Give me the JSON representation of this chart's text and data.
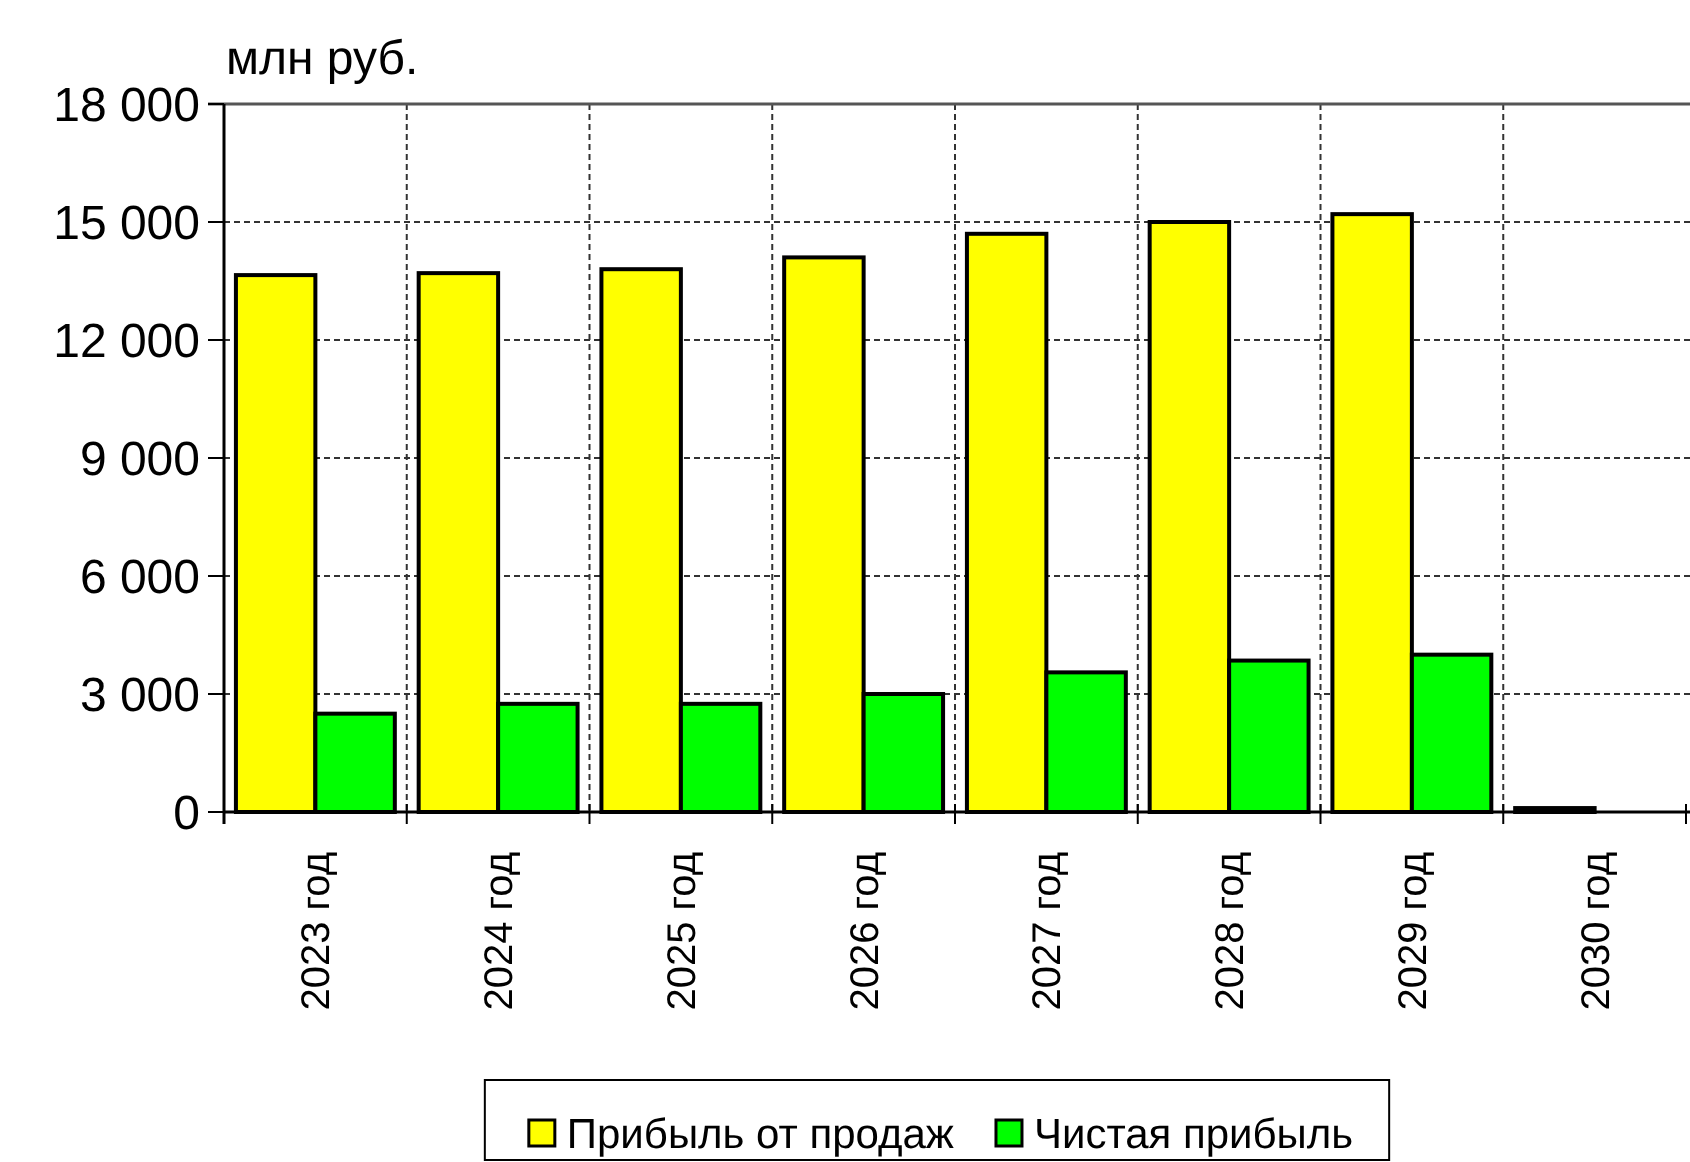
{
  "chart_data": {
    "type": "bar",
    "title": "млн руб.",
    "categories": [
      "2023 год",
      "2024 год",
      "2025 год",
      "2026 год",
      "2027 год",
      "2028 год",
      "2029 год",
      "2030 год"
    ],
    "series": [
      {
        "name": "Прибыль от продаж",
        "color": "#ffff00",
        "values": [
          13650,
          13700,
          13800,
          14100,
          14700,
          15000,
          15200,
          100
        ]
      },
      {
        "name": "Чистая прибыль",
        "color": "#00ff00",
        "values": [
          2500,
          2750,
          2750,
          3000,
          3550,
          3850,
          4000,
          0
        ]
      }
    ],
    "ylim": [
      0,
      18000
    ],
    "yticks": [
      0,
      {
        "value": 3000,
        "label": "3 000"
      },
      {
        "value": 6000,
        "label": "6 000"
      },
      {
        "value": 9000,
        "label": "9 000"
      },
      {
        "value": 12000,
        "label": "12 000"
      },
      {
        "value": 15000,
        "label": "15 000"
      },
      {
        "value": 18000,
        "label": "18 000"
      }
    ],
    "grid": true,
    "legend": "bottom"
  }
}
